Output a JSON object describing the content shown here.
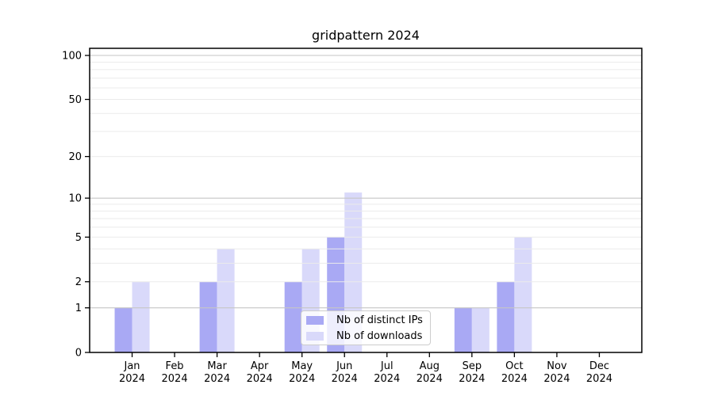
{
  "chart_data": {
    "type": "bar",
    "title": "gridpattern 2024",
    "xlabel": "",
    "ylabel": "",
    "x_categories": [
      {
        "month": "Jan",
        "year": "2024"
      },
      {
        "month": "Feb",
        "year": "2024"
      },
      {
        "month": "Mar",
        "year": "2024"
      },
      {
        "month": "Apr",
        "year": "2024"
      },
      {
        "month": "May",
        "year": "2024"
      },
      {
        "month": "Jun",
        "year": "2024"
      },
      {
        "month": "Jul",
        "year": "2024"
      },
      {
        "month": "Aug",
        "year": "2024"
      },
      {
        "month": "Sep",
        "year": "2024"
      },
      {
        "month": "Oct",
        "year": "2024"
      },
      {
        "month": "Nov",
        "year": "2024"
      },
      {
        "month": "Dec",
        "year": "2024"
      }
    ],
    "series": [
      {
        "name": "Nb of distinct IPs",
        "color": "#a9a9f4",
        "values": [
          1,
          0,
          2,
          0,
          2,
          5,
          0,
          0,
          1,
          2,
          0,
          0
        ]
      },
      {
        "name": "Nb of downloads",
        "color": "#d9d9fa",
        "values": [
          2,
          0,
          4,
          0,
          4,
          11,
          0,
          0,
          1,
          5,
          0,
          0
        ]
      }
    ],
    "y_axis": {
      "scale": "log1p",
      "ylim": [
        0,
        125
      ],
      "ticks": [
        0,
        1,
        2,
        5,
        10,
        20,
        50,
        100
      ],
      "major_grid": [
        1,
        10,
        100
      ],
      "minor_grid": [
        2,
        3,
        4,
        5,
        6,
        7,
        8,
        9,
        20,
        30,
        40,
        50,
        60,
        70,
        80,
        90
      ]
    },
    "legend_position": "lower center",
    "grid": true
  },
  "style": {
    "axis_color": "#000000",
    "major_grid_color": "#c6c6c6",
    "minor_grid_color": "#ebebeb",
    "tick_label_size": "13",
    "title_size": "16"
  }
}
